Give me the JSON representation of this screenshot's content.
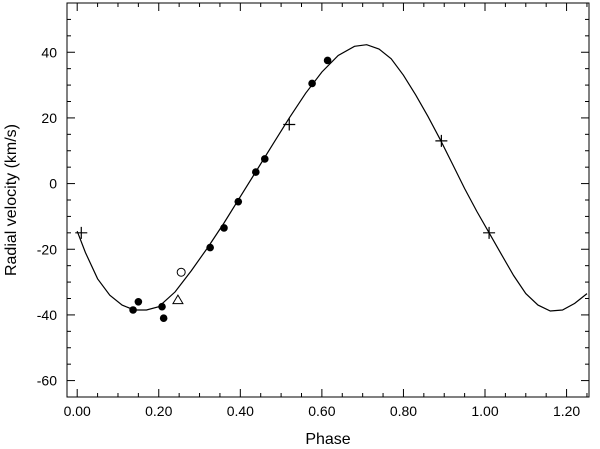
{
  "chart_data": {
    "type": "scatter",
    "title": "",
    "xlabel": "Phase",
    "ylabel": "Radial velocity (km/s)",
    "xlim": [
      -0.025,
      1.255
    ],
    "ylim": [
      -65,
      55
    ],
    "x_ticks": [
      {
        "value": 0.0,
        "label": "0.00"
      },
      {
        "value": 0.2,
        "label": "0.20"
      },
      {
        "value": 0.4,
        "label": "0.40"
      },
      {
        "value": 0.6,
        "label": "0.60"
      },
      {
        "value": 0.8,
        "label": "0.80"
      },
      {
        "value": 1.0,
        "label": "1.00"
      },
      {
        "value": 1.2,
        "label": "1.20"
      }
    ],
    "x_minor_step": 0.05,
    "y_ticks": [
      {
        "value": -60,
        "label": "-60"
      },
      {
        "value": -40,
        "label": "-40"
      },
      {
        "value": -20,
        "label": "-20"
      },
      {
        "value": 0,
        "label": "0"
      },
      {
        "value": 20,
        "label": "20"
      },
      {
        "value": 40,
        "label": "40"
      }
    ],
    "y_minor_step": 5,
    "grid": false,
    "legend": "none",
    "color": "#000000",
    "series": [
      {
        "marker": "filled-circle",
        "points": [
          {
            "x": 0.137,
            "y": -38.5
          },
          {
            "x": 0.15,
            "y": -36.0
          },
          {
            "x": 0.208,
            "y": -37.5
          },
          {
            "x": 0.212,
            "y": -41.0
          },
          {
            "x": 0.326,
            "y": -19.5
          },
          {
            "x": 0.36,
            "y": -13.5
          },
          {
            "x": 0.395,
            "y": -5.5
          },
          {
            "x": 0.438,
            "y": 3.5
          },
          {
            "x": 0.46,
            "y": 7.5
          },
          {
            "x": 0.576,
            "y": 30.5
          },
          {
            "x": 0.614,
            "y": 37.5
          }
        ]
      },
      {
        "marker": "plus",
        "points": [
          {
            "x": 0.01,
            "y": -15.0
          },
          {
            "x": 0.52,
            "y": 18.0
          },
          {
            "x": 0.893,
            "y": 13.0
          },
          {
            "x": 1.01,
            "y": -15.0
          }
        ]
      },
      {
        "marker": "open-circle",
        "points": [
          {
            "x": 0.255,
            "y": -27.0
          }
        ]
      },
      {
        "marker": "open-triangle",
        "points": [
          {
            "x": 0.247,
            "y": -35.5
          }
        ]
      },
      {
        "marker": "line",
        "model": "fitted-curve",
        "points": [
          {
            "x": 0.0,
            "y": -14.5
          },
          {
            "x": 0.02,
            "y": -21.0
          },
          {
            "x": 0.05,
            "y": -29.0
          },
          {
            "x": 0.08,
            "y": -34.0
          },
          {
            "x": 0.11,
            "y": -37.0
          },
          {
            "x": 0.14,
            "y": -38.5
          },
          {
            "x": 0.17,
            "y": -38.5
          },
          {
            "x": 0.2,
            "y": -37.5
          },
          {
            "x": 0.24,
            "y": -33.0
          },
          {
            "x": 0.28,
            "y": -26.5
          },
          {
            "x": 0.32,
            "y": -19.5
          },
          {
            "x": 0.36,
            "y": -12.0
          },
          {
            "x": 0.4,
            "y": -4.0
          },
          {
            "x": 0.44,
            "y": 4.0
          },
          {
            "x": 0.48,
            "y": 12.0
          },
          {
            "x": 0.52,
            "y": 20.0
          },
          {
            "x": 0.56,
            "y": 27.5
          },
          {
            "x": 0.6,
            "y": 34.0
          },
          {
            "x": 0.64,
            "y": 39.0
          },
          {
            "x": 0.68,
            "y": 41.8
          },
          {
            "x": 0.71,
            "y": 42.3
          },
          {
            "x": 0.74,
            "y": 41.0
          },
          {
            "x": 0.77,
            "y": 38.0
          },
          {
            "x": 0.8,
            "y": 33.0
          },
          {
            "x": 0.83,
            "y": 27.0
          },
          {
            "x": 0.86,
            "y": 20.5
          },
          {
            "x": 0.89,
            "y": 13.5
          },
          {
            "x": 0.92,
            "y": 6.0
          },
          {
            "x": 0.95,
            "y": -1.5
          },
          {
            "x": 0.98,
            "y": -8.5
          },
          {
            "x": 1.01,
            "y": -15.0
          },
          {
            "x": 1.04,
            "y": -21.5
          },
          {
            "x": 1.07,
            "y": -28.0
          },
          {
            "x": 1.1,
            "y": -33.5
          },
          {
            "x": 1.13,
            "y": -37.0
          },
          {
            "x": 1.16,
            "y": -38.8
          },
          {
            "x": 1.19,
            "y": -38.5
          },
          {
            "x": 1.22,
            "y": -36.5
          },
          {
            "x": 1.25,
            "y": -33.5
          }
        ]
      }
    ]
  }
}
